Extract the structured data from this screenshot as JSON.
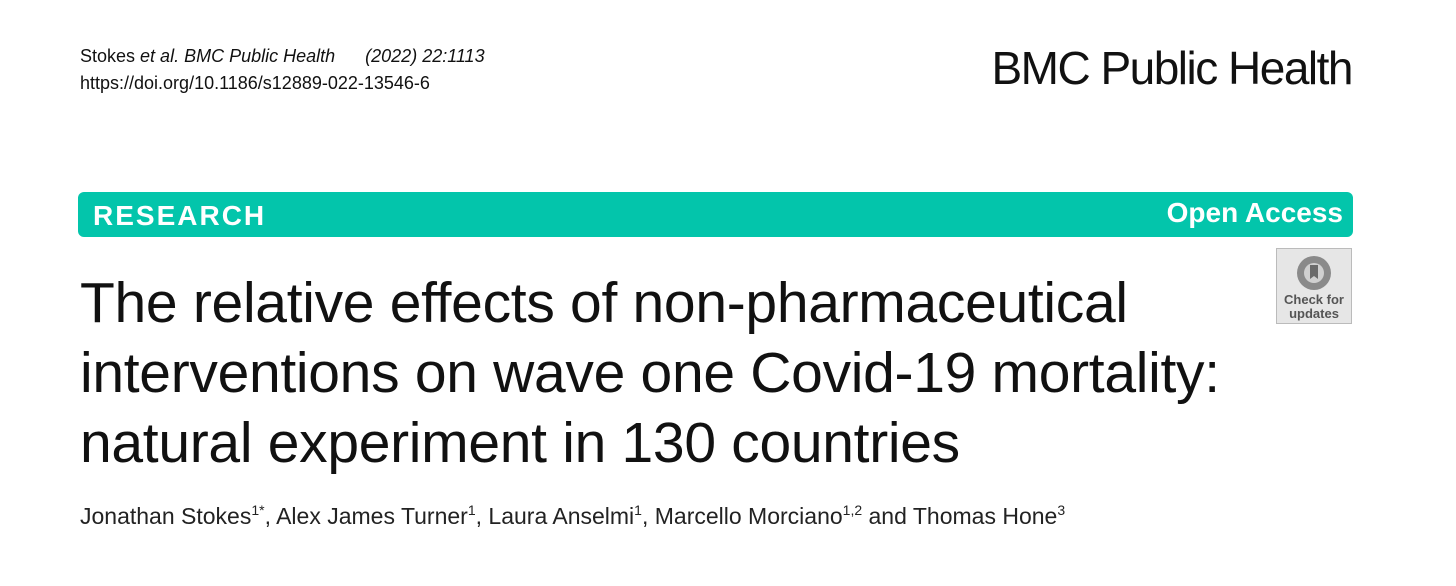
{
  "header": {
    "citation_author": "Stokes",
    "citation_rest": "et al. BMC Public Health",
    "citation_issue": "(2022) 22:1113",
    "doi": "https://doi.org/10.1186/s12889-022-13546-6",
    "journal": "BMC Public Health"
  },
  "banner": {
    "type": "RESEARCH",
    "access": "Open Access"
  },
  "badge": {
    "line1": "Check for",
    "line2": "updates"
  },
  "title_lines": [
    "The relative effects of non-pharmaceutical",
    "interventions on wave one Covid-19 mortality:",
    "natural experiment in 130 countries"
  ],
  "authors": [
    {
      "name": "Jonathan Stokes",
      "affiliation": "1*"
    },
    {
      "before": ", ",
      "name": "Alex James Turner",
      "affiliation": "1"
    },
    {
      "before": ", ",
      "name": "Laura Anselmi",
      "affiliation": "1"
    },
    {
      "before": ", ",
      "name": "Marcello Morciano",
      "affiliation": "1,2"
    },
    {
      "before": " and ",
      "name": "Thomas Hone",
      "affiliation": "3"
    }
  ]
}
